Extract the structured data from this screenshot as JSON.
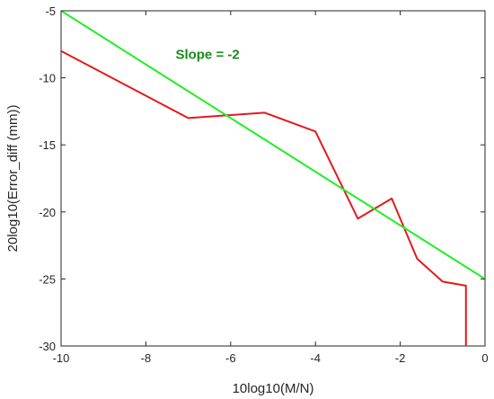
{
  "chart_data": {
    "type": "line",
    "title": "",
    "xlabel": "10log10(M/N)",
    "ylabel": "20log10(Error_diff (mm))",
    "xlim": [
      -10,
      0
    ],
    "ylim": [
      -30,
      -5
    ],
    "xticks": [
      -10,
      -8,
      -6,
      -4,
      -2,
      0
    ],
    "yticks": [
      -30,
      -25,
      -20,
      -15,
      -10,
      -5
    ],
    "xtick_labels": [
      "-10",
      "-8",
      "-6",
      "-4",
      "-2",
      "0"
    ],
    "ytick_labels": [
      "-30",
      "-25",
      "-20",
      "-15",
      "-10",
      "-5"
    ],
    "grid": false,
    "box": true,
    "series": [
      {
        "color": "#e41a1c",
        "x": [
          -10,
          -7,
          -5.2,
          -4,
          -3,
          -2.2,
          -1.6,
          -1,
          -0.45,
          -0.45
        ],
        "y": [
          -8,
          -13,
          -12.6,
          -14,
          -20.5,
          -19,
          -23.5,
          -25.2,
          -25.5,
          -30
        ]
      },
      {
        "color": "#22ee22",
        "x": [
          -10,
          0
        ],
        "y": [
          -5,
          -25
        ]
      }
    ],
    "annotations": [
      {
        "text": "Slope = -2",
        "x": -7.3,
        "y": -8.6,
        "color": "#1a8c1a"
      }
    ]
  }
}
